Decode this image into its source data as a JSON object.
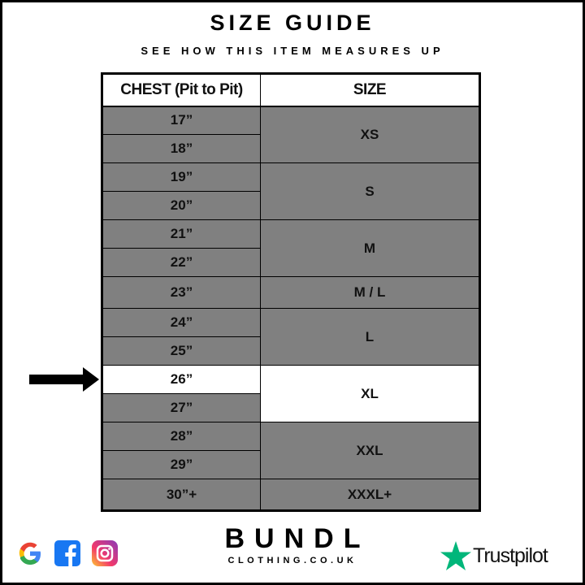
{
  "header": {
    "title": "SIZE GUIDE",
    "subtitle": "SEE HOW THIS ITEM MEASURES UP"
  },
  "table": {
    "columns": [
      "CHEST (Pit to Pit)",
      "SIZE"
    ],
    "chest": [
      "17”",
      "18”",
      "19”",
      "20”",
      "21”",
      "22”",
      "23”",
      "24”",
      "25”",
      "26”",
      "27”",
      "28”",
      "29”",
      "30”+"
    ],
    "sizes": [
      "XS",
      "S",
      "M",
      "M / L",
      "L",
      "XL",
      "XXL",
      "XXXL+"
    ],
    "highlighted_chest": "26”",
    "highlighted_size": "XL"
  },
  "colors": {
    "cell": "#808080",
    "highlight": "#ffffff",
    "trustpilot": "#00b67a"
  },
  "footer": {
    "brand": "BUNDL",
    "domain": "CLOTHING.CO.UK",
    "trustpilot": "Trustpilot",
    "social_icons": [
      "google-icon",
      "facebook-icon",
      "instagram-icon"
    ]
  }
}
